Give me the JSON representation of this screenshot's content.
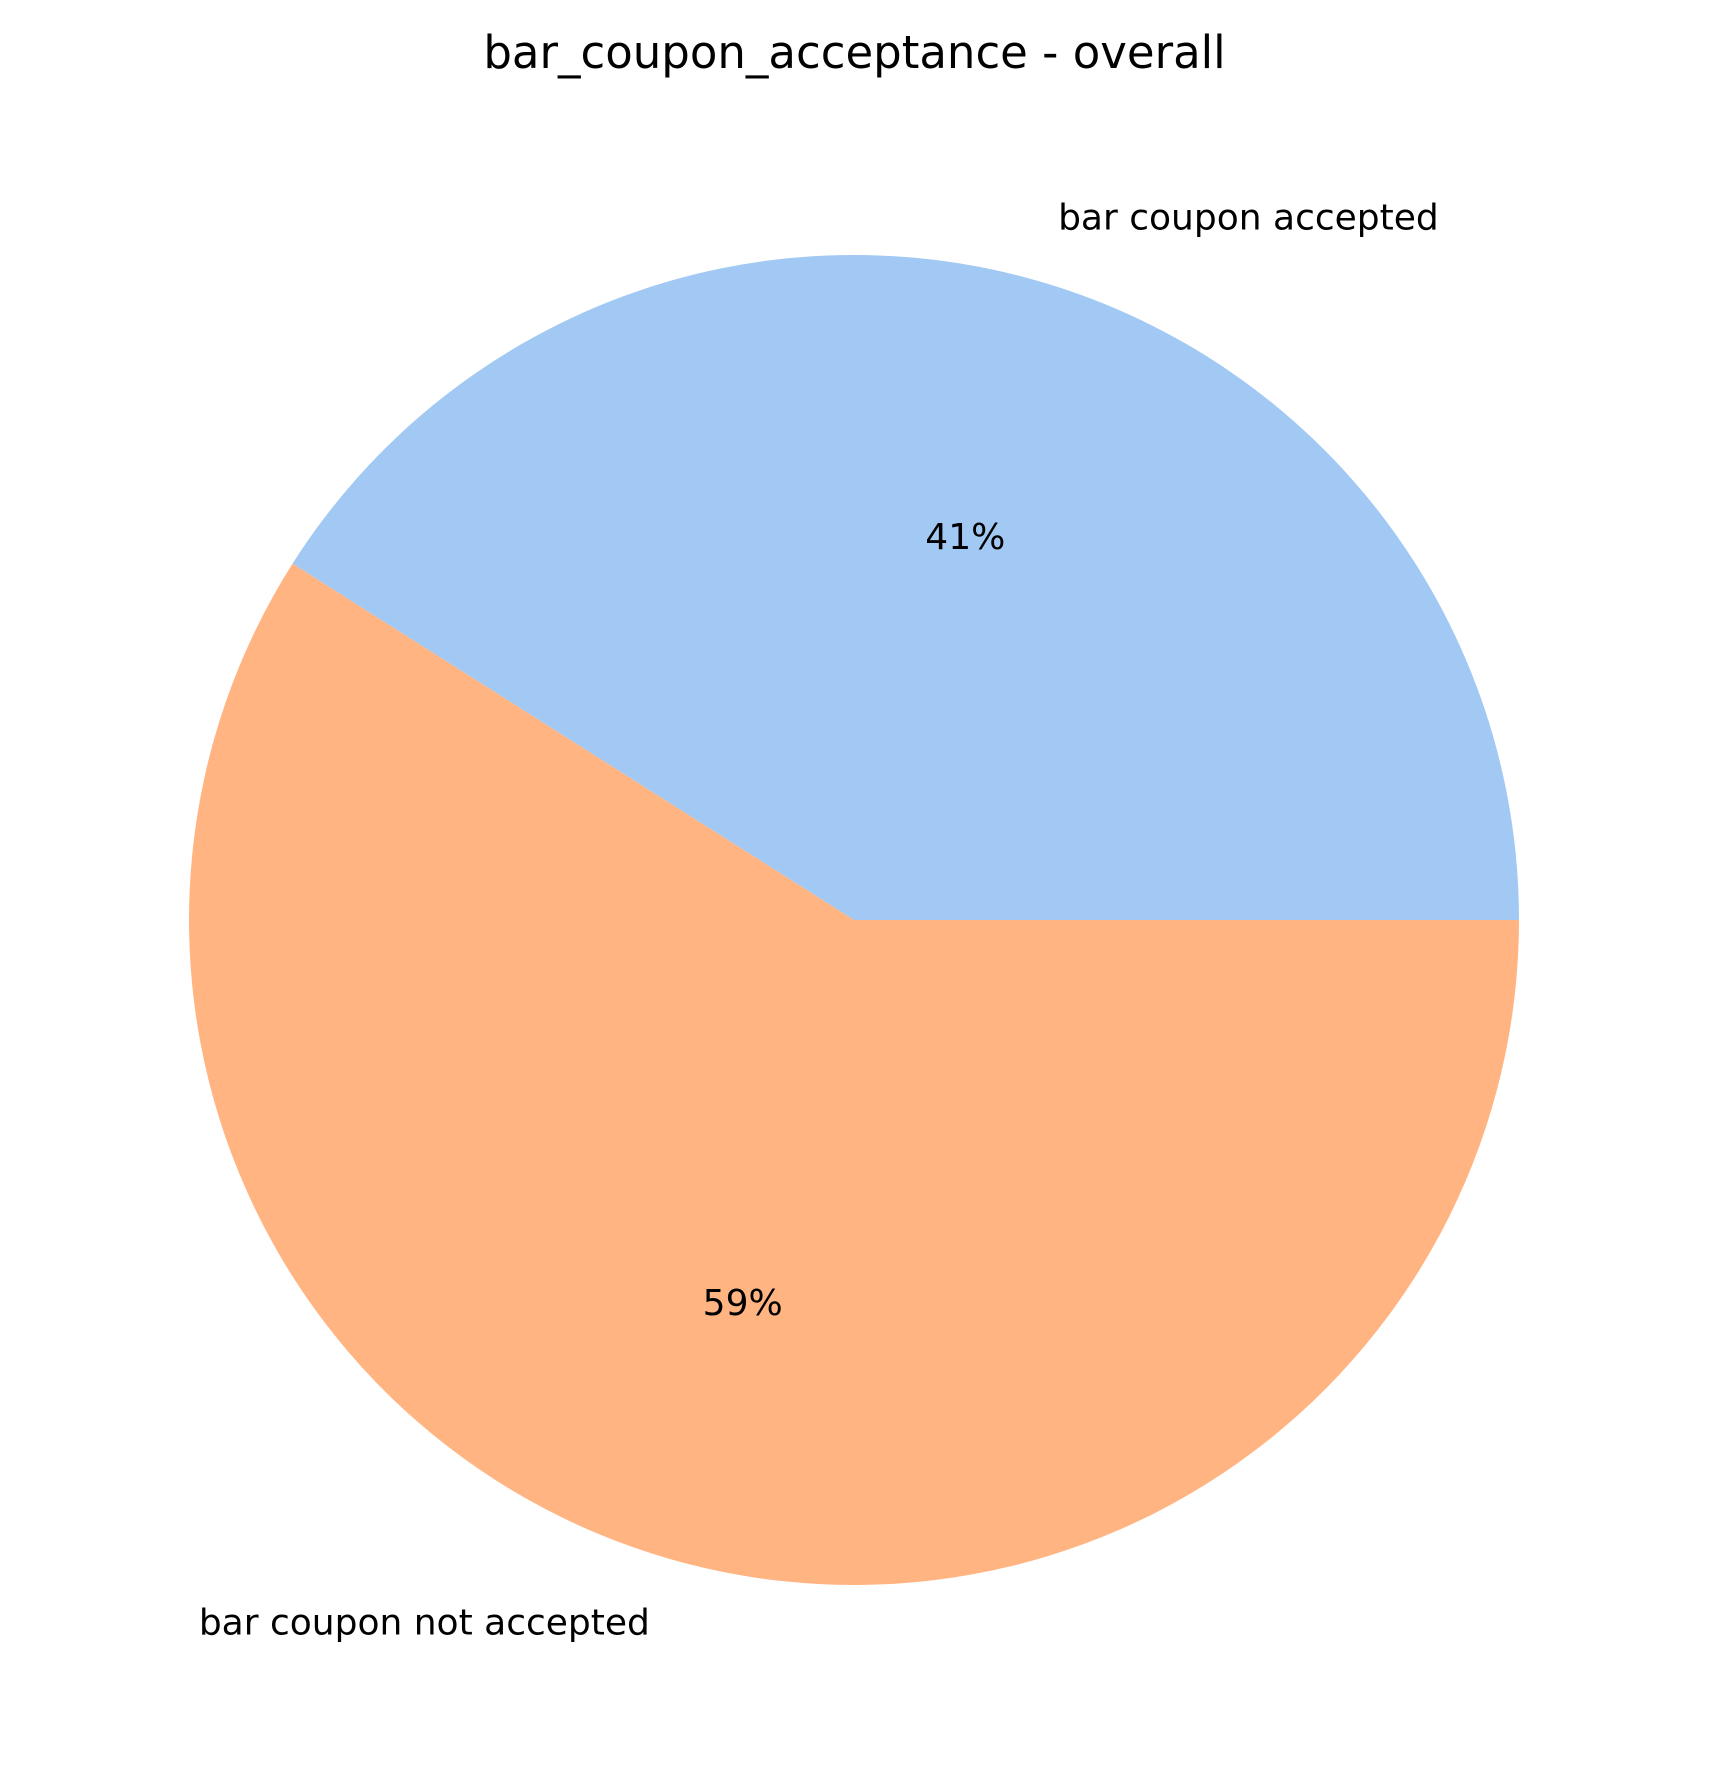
{
  "chart_data": {
    "type": "pie",
    "title": "bar_coupon_acceptance - overall",
    "slices": [
      {
        "label": "bar coupon accepted",
        "value": 41,
        "display": "41%",
        "color": "#a1c9f4"
      },
      {
        "label": "bar coupon not accepted",
        "value": 59,
        "display": "59%",
        "color": "#ffb482"
      }
    ],
    "start_angle_deg": 0,
    "direction": "counterclockwise",
    "legend": "none"
  }
}
